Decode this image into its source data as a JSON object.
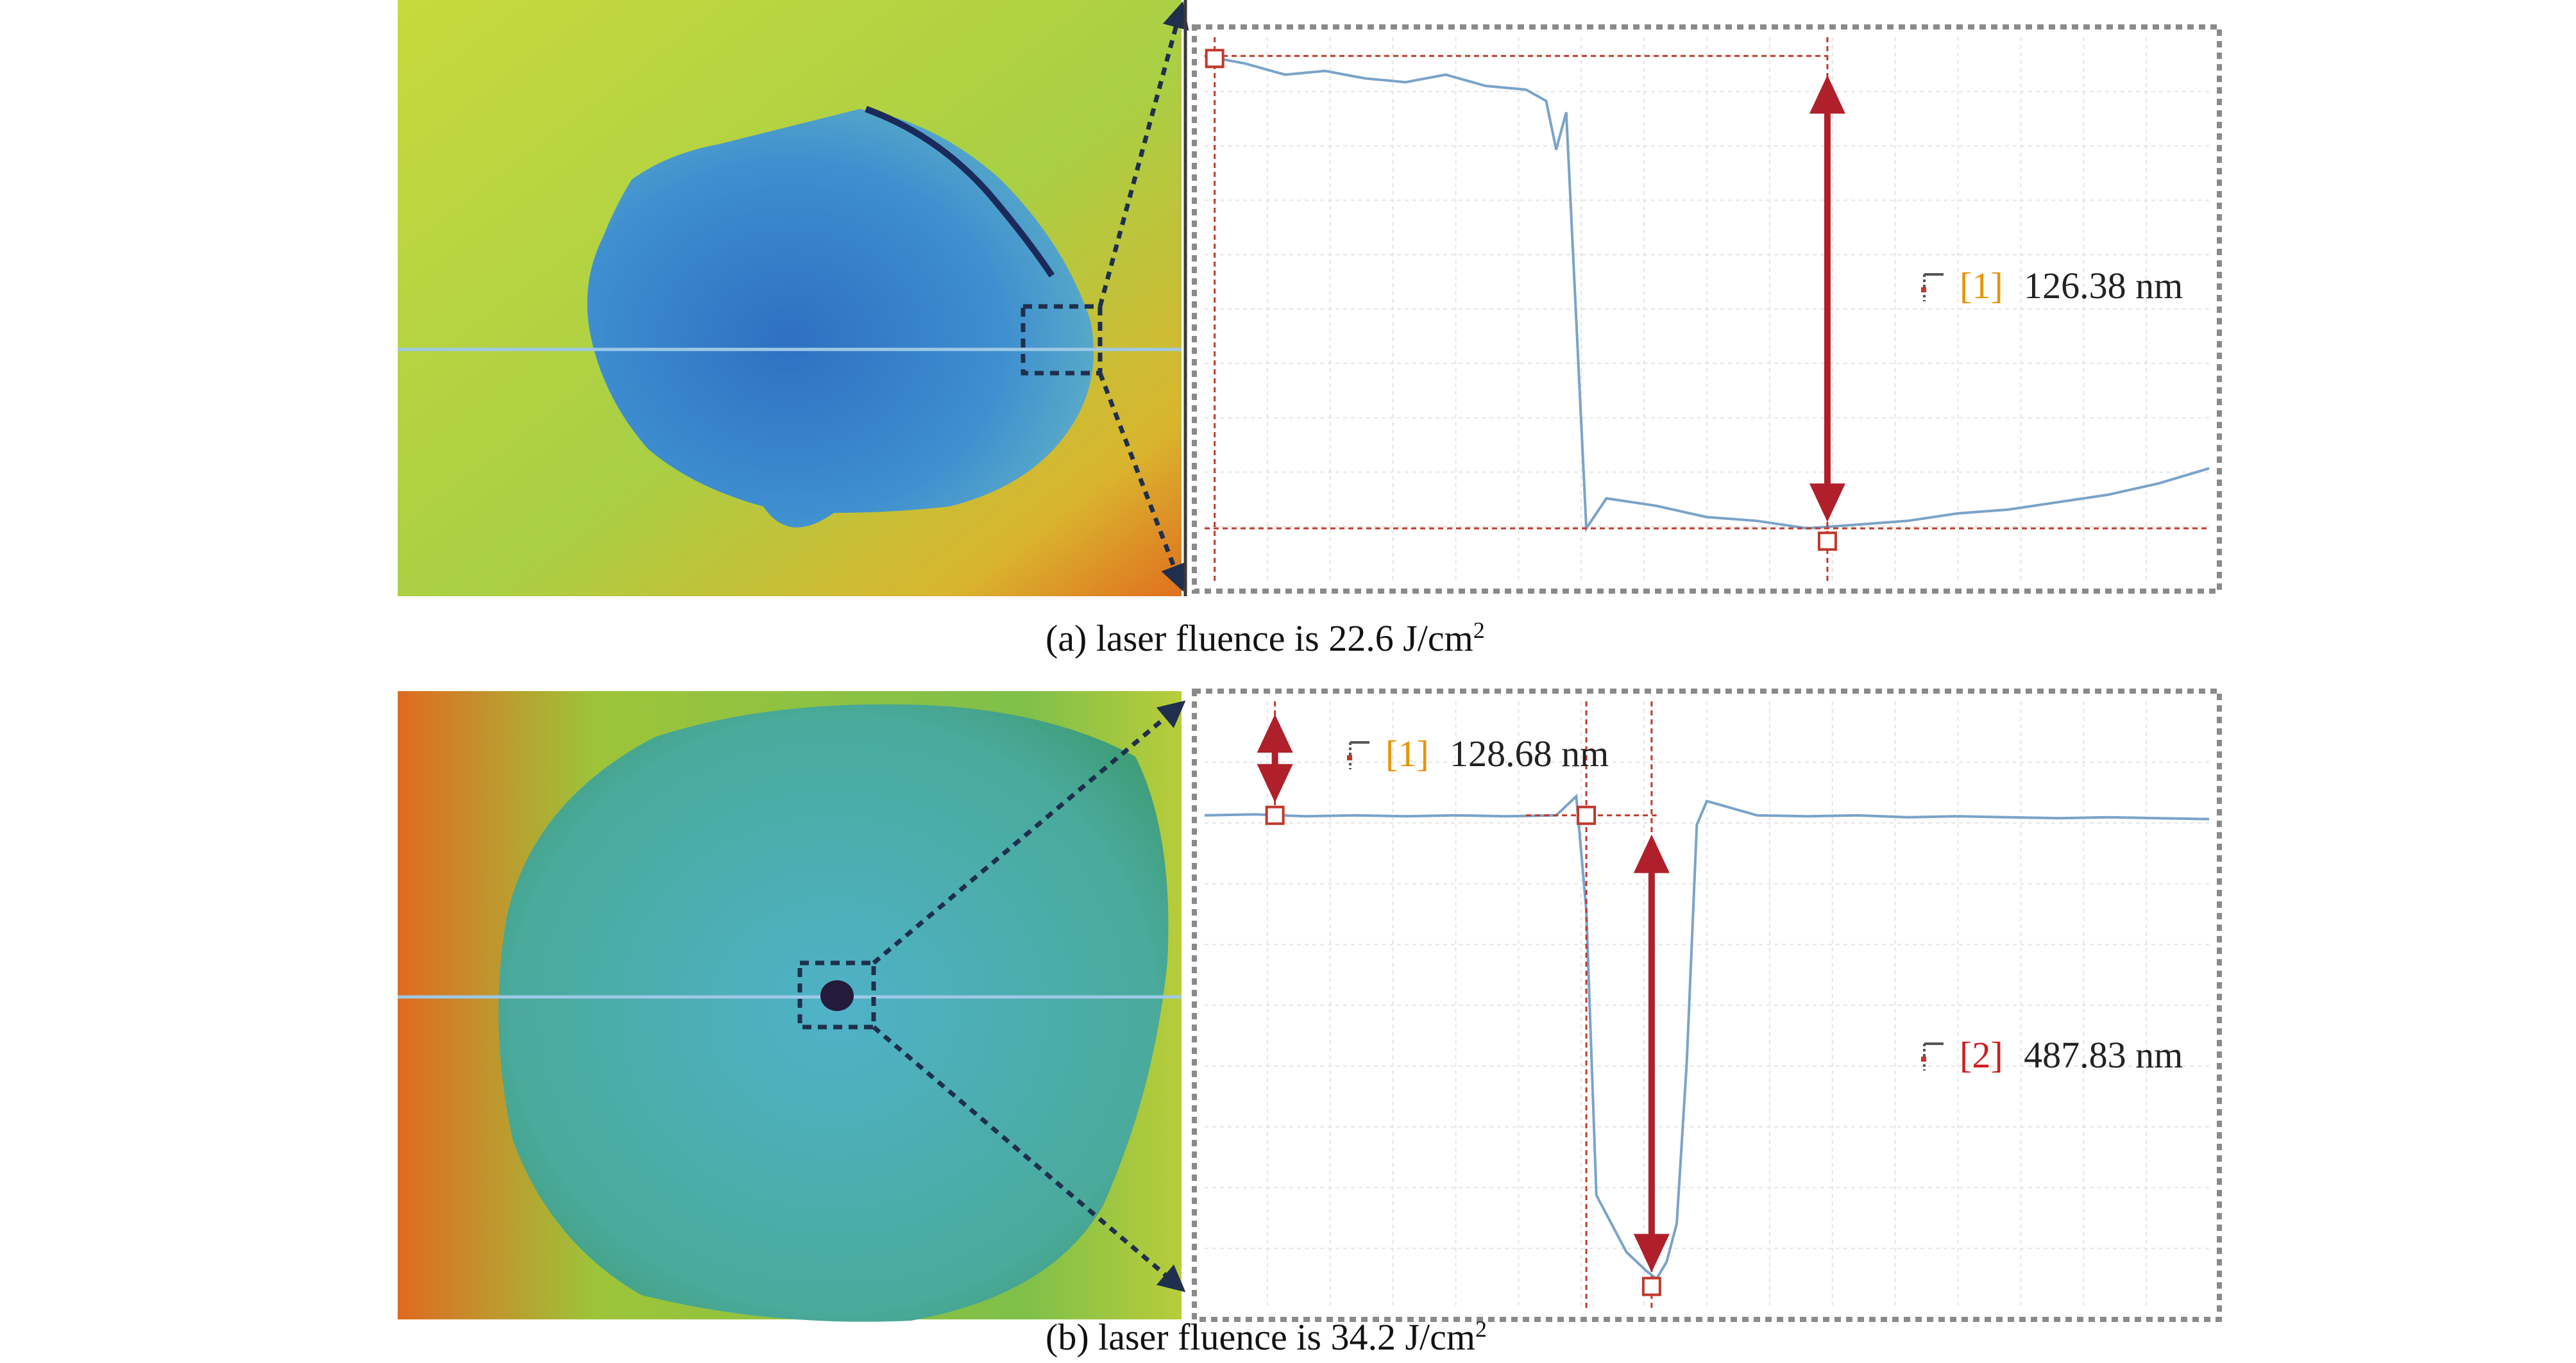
{
  "colors": {
    "profile_line": "#7aa3c8",
    "marker": "#c0392b",
    "label_1": "#e69500",
    "label_2": "#cc1f1f",
    "frame": "#8a8a8a",
    "zoom_arrow": "#1f2f4d",
    "scan_line": "#9ec9e6"
  },
  "panels": [
    {
      "id": "a",
      "caption_prefix": "(a) laser fluence is 22.6 J/cm",
      "caption_sup": "2",
      "measurements": [
        {
          "tag": "[1]",
          "value": "126.38 nm",
          "color": "#e69500"
        }
      ],
      "image": {
        "description_colors": [
          "#c9d93a",
          "#2e84c8",
          "#e07a22"
        ],
        "features": [
          "circular-crater",
          "crack-edge",
          "zoom-box"
        ]
      }
    },
    {
      "id": "b",
      "caption_prefix": "(b) laser fluence is 34.2 J/cm",
      "caption_sup": "2",
      "measurements": [
        {
          "tag": "[1]",
          "value": "128.68 nm",
          "color": "#e69500"
        },
        {
          "tag": "[2]",
          "value": "487.83 nm",
          "color": "#cc1f1f"
        }
      ],
      "image": {
        "description_colors": [
          "#e07a22",
          "#48b8b4",
          "#c9d93a"
        ],
        "features": [
          "circular-crater",
          "central-hole",
          "zoom-box"
        ]
      }
    }
  ],
  "chart_data": [
    {
      "type": "line",
      "panel": "a",
      "title": "",
      "xlabel": "",
      "ylabel": "",
      "grid": true,
      "series": [
        {
          "x": [
            0,
            4,
            8,
            12,
            16,
            20,
            24,
            28,
            32,
            34,
            35,
            36,
            38,
            40,
            45,
            50,
            55,
            60,
            65,
            70,
            75,
            80,
            85,
            90,
            95,
            100
          ],
          "y": [
            0,
            -2,
            -5,
            -4,
            -6,
            -7,
            -5,
            -8,
            -9,
            -12,
            -25,
            -15,
            -126,
            -118,
            -120,
            -123,
            -124,
            -126,
            -125,
            -124,
            -122,
            -121,
            -119,
            -117,
            -114,
            -110
          ]
        }
      ],
      "step_height_nm": 126.38,
      "ylim": [
        -140,
        5
      ]
    },
    {
      "type": "line",
      "panel": "b",
      "title": "",
      "xlabel": "",
      "ylabel": "",
      "grid": true,
      "series": [
        {
          "x": [
            0,
            5,
            10,
            15,
            20,
            25,
            30,
            35,
            37,
            38,
            39,
            40,
            42,
            44,
            45,
            46,
            47,
            48,
            49,
            50,
            55,
            60,
            65,
            70,
            75,
            80,
            85,
            90,
            95,
            100
          ],
          "y": [
            0,
            1,
            -1,
            0,
            -1,
            0,
            -1,
            0,
            20,
            -100,
            -400,
            -420,
            -460,
            -480,
            -488,
            -470,
            -430,
            -260,
            -10,
            15,
            0,
            -1,
            0,
            -2,
            -1,
            -2,
            -3,
            -2,
            -3,
            -4
          ]
        }
      ],
      "step_height_nm": 487.83,
      "ylim": [
        -520,
        120
      ]
    }
  ]
}
